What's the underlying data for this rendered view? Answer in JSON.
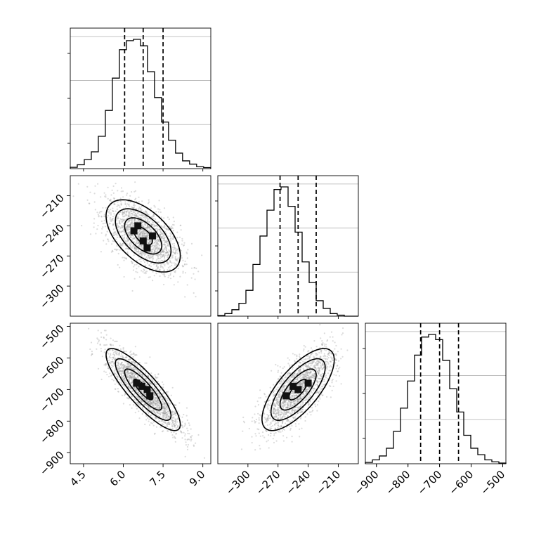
{
  "chart_data": {
    "type": "corner",
    "parameters": [
      {
        "index": 0,
        "range": [
          4.0,
          9.3
        ],
        "ticks": [
          {
            "value": 4.5,
            "label": "4.5"
          },
          {
            "value": 6.0,
            "label": "6.0"
          },
          {
            "value": 7.5,
            "label": "7.5"
          },
          {
            "value": 9.0,
            "label": "9.0"
          }
        ],
        "mean": 6.75,
        "sd": 0.7,
        "quantiles": [
          6.05,
          6.75,
          7.5
        ]
      },
      {
        "index": 1,
        "range": [
          -330,
          -190
        ],
        "ticks": [
          {
            "value": -300,
            "label": "−300"
          },
          {
            "value": -270,
            "label": "−270"
          },
          {
            "value": -240,
            "label": "−240"
          },
          {
            "value": -210,
            "label": "−210"
          }
        ],
        "mean": -250,
        "sd": 18,
        "quantiles": [
          -268,
          -250,
          -232
        ]
      },
      {
        "index": 2,
        "range": [
          -935,
          -490
        ],
        "ticks": [
          {
            "value": -900,
            "label": "−900"
          },
          {
            "value": -800,
            "label": "−800"
          },
          {
            "value": -700,
            "label": "−700"
          },
          {
            "value": -600,
            "label": "−600"
          },
          {
            "value": -500,
            "label": "−500"
          }
        ],
        "mean": -700,
        "sd": 65,
        "quantiles": [
          -760,
          -700,
          -640
        ]
      }
    ],
    "histograms": [
      {
        "param": 0,
        "bin_start": 4.0,
        "bin_width": 0.2647,
        "counts": [
          0.01,
          0.03,
          0.07,
          0.13,
          0.25,
          0.45,
          0.7,
          0.92,
          0.99,
          1.0,
          0.95,
          0.75,
          0.55,
          0.36,
          0.22,
          0.12,
          0.06,
          0.035,
          0.015,
          0.008
        ]
      },
      {
        "param": 1,
        "bin_start": -330,
        "bin_width": 7,
        "counts": [
          0.005,
          0.02,
          0.05,
          0.1,
          0.2,
          0.4,
          0.62,
          0.82,
          0.98,
          1.0,
          0.85,
          0.65,
          0.42,
          0.26,
          0.12,
          0.06,
          0.02,
          0.008,
          0.0,
          0.0
        ]
      },
      {
        "param": 2,
        "bin_start": -935,
        "bin_width": 22.25,
        "counts": [
          0.01,
          0.03,
          0.06,
          0.12,
          0.25,
          0.43,
          0.64,
          0.84,
          0.98,
          1.0,
          0.96,
          0.8,
          0.58,
          0.4,
          0.22,
          0.12,
          0.07,
          0.03,
          0.015,
          0.005
        ]
      }
    ],
    "pairs": [
      {
        "x": 0,
        "y": 1,
        "correlation": -0.55
      },
      {
        "x": 0,
        "y": 2,
        "correlation": -0.85
      },
      {
        "x": 1,
        "y": 2,
        "correlation": 0.72
      }
    ],
    "contour_levels": [
      0.5,
      1.0,
      1.5,
      2.0
    ],
    "dense_bins": [
      {
        "pair": 0,
        "cells": [
          [
            6.4,
            -245
          ],
          [
            6.75,
            -255
          ],
          [
            7.1,
            -250
          ],
          [
            6.9,
            -262
          ],
          [
            6.55,
            -240
          ]
        ]
      },
      {
        "pair": 1,
        "cells": [
          [
            6.7,
            -690
          ],
          [
            7.0,
            -720
          ],
          [
            6.5,
            -680
          ],
          [
            6.9,
            -700
          ]
        ]
      },
      {
        "pair": 2,
        "cells": [
          [
            -250,
            -700
          ],
          [
            -262,
            -720
          ],
          [
            -240,
            -680
          ],
          [
            -255,
            -690
          ]
        ]
      }
    ],
    "grid": true
  }
}
